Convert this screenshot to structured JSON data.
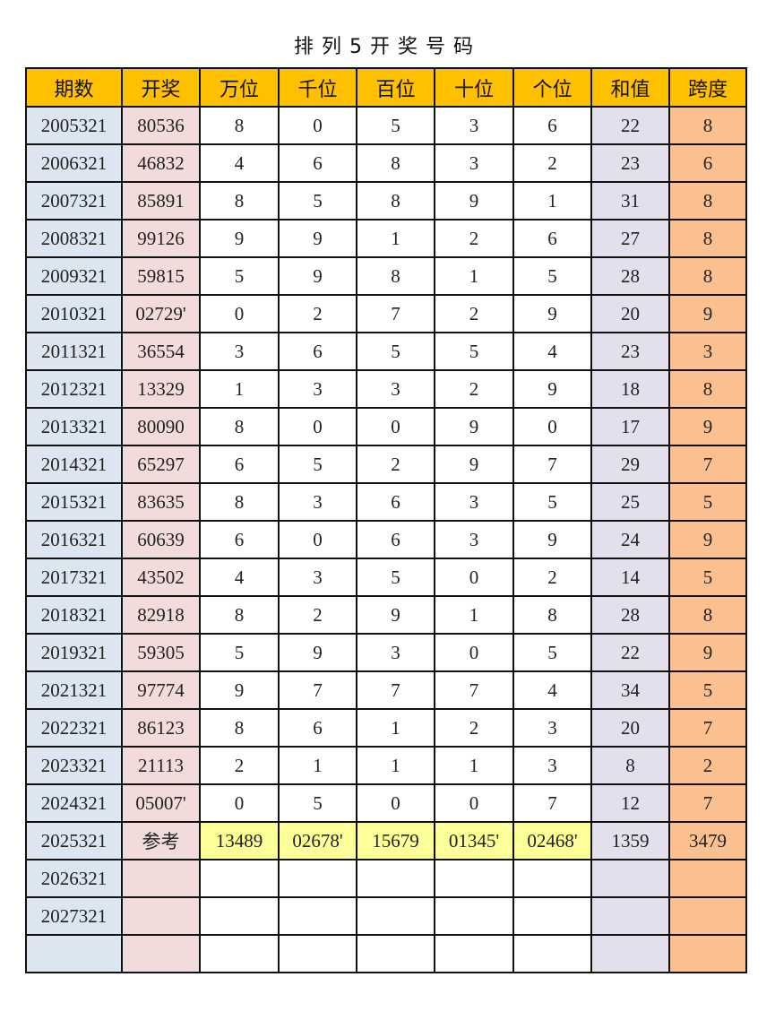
{
  "title": "排列5开奖号码",
  "colors": {
    "header": "#FFC000",
    "period_col": "#DCE6F1",
    "draw_col": "#F2DCDB",
    "sum_col": "#E4DFEC",
    "span_col": "#FAC090",
    "reference_row": "#FFFF99"
  },
  "columns": [
    "期数",
    "开奖",
    "万位",
    "千位",
    "百位",
    "十位",
    "个位",
    "和值",
    "跨度"
  ],
  "rows": [
    [
      "2005321",
      "80536",
      "8",
      "0",
      "5",
      "3",
      "6",
      "22",
      "8"
    ],
    [
      "2006321",
      "46832",
      "4",
      "6",
      "8",
      "3",
      "2",
      "23",
      "6"
    ],
    [
      "2007321",
      "85891",
      "8",
      "5",
      "8",
      "9",
      "1",
      "31",
      "8"
    ],
    [
      "2008321",
      "99126",
      "9",
      "9",
      "1",
      "2",
      "6",
      "27",
      "8"
    ],
    [
      "2009321",
      "59815",
      "5",
      "9",
      "8",
      "1",
      "5",
      "28",
      "8"
    ],
    [
      "2010321",
      "02729'",
      "0",
      "2",
      "7",
      "2",
      "9",
      "20",
      "9"
    ],
    [
      "2011321",
      "36554",
      "3",
      "6",
      "5",
      "5",
      "4",
      "23",
      "3"
    ],
    [
      "2012321",
      "13329",
      "1",
      "3",
      "3",
      "2",
      "9",
      "18",
      "8"
    ],
    [
      "2013321",
      "80090",
      "8",
      "0",
      "0",
      "9",
      "0",
      "17",
      "9"
    ],
    [
      "2014321",
      "65297",
      "6",
      "5",
      "2",
      "9",
      "7",
      "29",
      "7"
    ],
    [
      "2015321",
      "83635",
      "8",
      "3",
      "6",
      "3",
      "5",
      "25",
      "5"
    ],
    [
      "2016321",
      "60639",
      "6",
      "0",
      "6",
      "3",
      "9",
      "24",
      "9"
    ],
    [
      "2017321",
      "43502",
      "4",
      "3",
      "5",
      "0",
      "2",
      "14",
      "5"
    ],
    [
      "2018321",
      "82918",
      "8",
      "2",
      "9",
      "1",
      "8",
      "28",
      "8"
    ],
    [
      "2019321",
      "59305",
      "5",
      "9",
      "3",
      "0",
      "5",
      "22",
      "9"
    ],
    [
      "2021321",
      "97774",
      "9",
      "7",
      "7",
      "7",
      "4",
      "34",
      "5"
    ],
    [
      "2022321",
      "86123",
      "8",
      "6",
      "1",
      "2",
      "3",
      "20",
      "7"
    ],
    [
      "2023321",
      "21113",
      "2",
      "1",
      "1",
      "1",
      "3",
      "8",
      "2"
    ],
    [
      "2024321",
      "05007'",
      "0",
      "5",
      "0",
      "0",
      "7",
      "12",
      "7"
    ]
  ],
  "reference_row": [
    "2025321",
    "参考",
    "13489",
    "02678'",
    "15679",
    "01345'",
    "02468'",
    "1359",
    "3479"
  ],
  "empty_rows": [
    [
      "2026321",
      "",
      "",
      "",
      "",
      "",
      "",
      "",
      ""
    ],
    [
      "2027321",
      "",
      "",
      "",
      "",
      "",
      "",
      "",
      ""
    ],
    [
      "",
      "",
      "",
      "",
      "",
      "",
      "",
      "",
      ""
    ]
  ]
}
